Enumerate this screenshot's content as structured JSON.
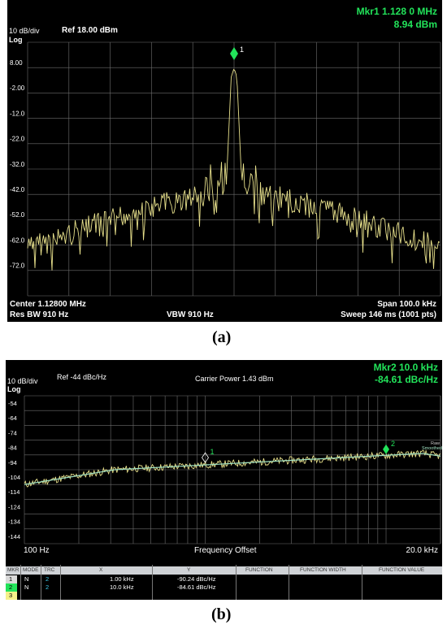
{
  "panel_a": {
    "marker_title": "Mkr1 1.128 0 MHz",
    "marker_value": "8.94 dBm",
    "scale": "10 dB/div",
    "scale_type": "Log",
    "ref_level": "Ref 18.00 dBm",
    "y_ticks": [
      "8.00",
      "-2.00",
      "-12.0",
      "-22.0",
      "-32.0",
      "-42.0",
      "-52.0",
      "-62.0",
      "-72.0"
    ],
    "marker_label": "1",
    "center": "Center 1.12800 MHz",
    "span": "Span 100.0 kHz",
    "res_bw": "Res BW 910 Hz",
    "vbw": "VBW 910 Hz",
    "sweep": "Sweep  146 ms (1001 pts)"
  },
  "caption_a": "(a)",
  "panel_b": {
    "marker_title": "Mkr2 10.0 kHz",
    "marker_value": "-84.61  dBc/Hz",
    "scale": "10 dB/div",
    "scale_type": "Log",
    "ref_level": "Ref  -44 dBc/Hz",
    "carrier_power": "Carrier Power 1.43 dBm",
    "y_ticks": [
      "-54",
      "-64",
      "-74",
      "-84",
      "-94",
      "-104",
      "-114",
      "-124",
      "-134",
      "-144"
    ],
    "marker1_label": "1",
    "marker2_label": "2",
    "trace_legend": [
      "Raw",
      "Smoothed"
    ],
    "x_start": "100 Hz",
    "x_label": "Frequency Offset",
    "x_stop": "20.0 kHz"
  },
  "marker_table": {
    "headers": [
      "MKR",
      "MODE",
      "TRC",
      "X",
      "Y",
      "FUNCTION",
      "FUNCTION WIDTH",
      "FUNCTION VALUE"
    ],
    "rows": [
      {
        "mkr": "1",
        "mode": "N",
        "trc": "2",
        "x": "1.00 kHz",
        "y": "-90.24 dBc/Hz"
      },
      {
        "mkr": "2",
        "mode": "N",
        "trc": "2",
        "x": "10.0 kHz",
        "y": "-84.61 dBc/Hz"
      },
      {
        "mkr": "3",
        "mode": "",
        "trc": "",
        "x": "",
        "y": ""
      }
    ]
  },
  "caption_b": "(b)",
  "colors": {
    "background": "#000000",
    "trace": "#e8e18c",
    "smoothed_trace": "#9fe0c0",
    "marker": "#22e35a",
    "grid": "#6e6e6e",
    "text": "#ffffff"
  }
}
